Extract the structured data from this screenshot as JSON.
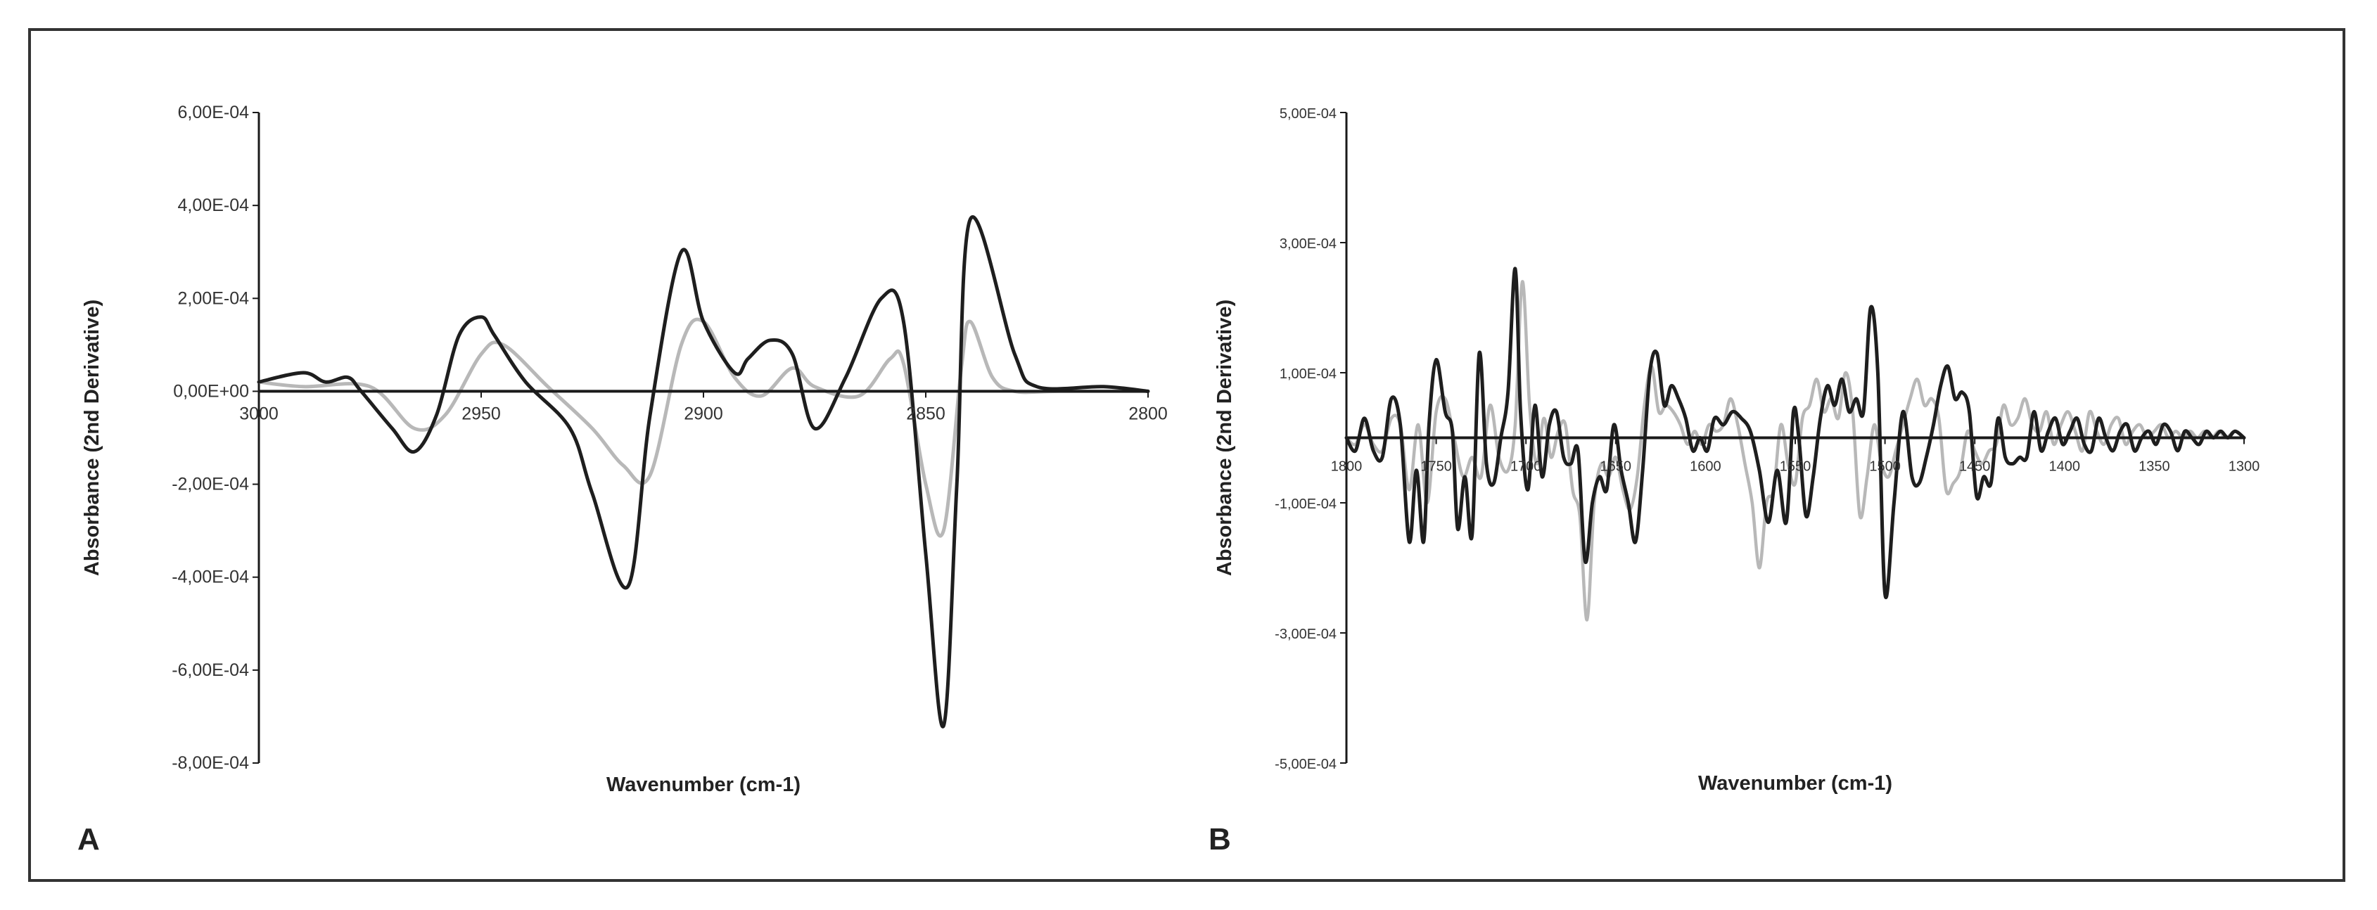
{
  "colors": {
    "dark_series": "#1e1e1e",
    "light_series": "#b8b8b8",
    "axis": "#1a1a1a",
    "ylabel": "#3a2a22"
  },
  "chart_data": [
    {
      "panel": "A",
      "type": "line",
      "xlabel": "Wavenumber (cm-1)",
      "ylabel": "Absorbance (2nd Derivative)",
      "xlim": [
        3000,
        2800
      ],
      "ylim": [
        -0.0008,
        0.0006
      ],
      "x_ticks": [
        3000,
        2950,
        2900,
        2850,
        2800
      ],
      "x_tick_labels": [
        "3000",
        "2950",
        "2900",
        "2850",
        "2800"
      ],
      "y_ticks": [
        0.0006,
        0.0004,
        0.0002,
        0,
        -0.0002,
        -0.0004,
        -0.0006,
        -0.0008
      ],
      "y_tick_labels": [
        "6,00E-04",
        "4,00E-04",
        "2,00E-04",
        "0,00E+00",
        "-2,00E-04",
        "-4,00E-04",
        "-6,00E-04",
        "-8,00E-04"
      ],
      "grid": false,
      "legend": "none",
      "series": [
        {
          "color": "#1e1e1e",
          "x": [
            3000,
            2990,
            2985,
            2980,
            2977,
            2970,
            2965,
            2960,
            2955,
            2950,
            2947,
            2940,
            2930,
            2925,
            2917,
            2912,
            2905,
            2900,
            2893,
            2890,
            2885,
            2880,
            2875,
            2868,
            2860,
            2855,
            2850,
            2846,
            2843,
            2840,
            2830,
            2825,
            2810,
            2800
          ],
          "y": [
            2e-05,
            4e-05,
            2e-05,
            3e-05,
            0,
            -8e-05,
            -0.00013,
            -5e-05,
            0.00012,
            0.00016,
            0.00012,
            2e-05,
            -8e-05,
            -0.00022,
            -0.00042,
            -5e-05,
            0.0003,
            0.00015,
            4e-05,
            7e-05,
            0.00011,
            8e-05,
            -8e-05,
            3e-05,
            0.0002,
            0.00015,
            -0.00035,
            -0.00072,
            -0.0002,
            0.00037,
            8e-05,
            1e-05,
            1e-05,
            0
          ]
        },
        {
          "color": "#b8b8b8",
          "x": [
            3000,
            2990,
            2975,
            2965,
            2958,
            2950,
            2945,
            2935,
            2925,
            2918,
            2912,
            2905,
            2900,
            2893,
            2887,
            2880,
            2875,
            2865,
            2858,
            2855,
            2850,
            2846,
            2842,
            2840,
            2835,
            2830,
            2820,
            2800
          ],
          "y": [
            2e-05,
            1e-05,
            1e-05,
            -8e-05,
            -5e-05,
            8e-05,
            0.0001,
            1e-05,
            -8e-05,
            -0.00016,
            -0.00018,
            0.0001,
            0.00015,
            3e-05,
            -1e-05,
            5e-05,
            1e-05,
            -1e-05,
            7e-05,
            6e-05,
            -0.0002,
            -0.0003,
            5e-05,
            0.00015,
            3e-05,
            0,
            0,
            0
          ]
        }
      ]
    },
    {
      "panel": "B",
      "type": "line",
      "xlabel": "Wavenumber (cm-1)",
      "ylabel": "Absorbance (2nd Derivative)",
      "xlim": [
        1800,
        1300
      ],
      "ylim": [
        -0.0005,
        0.0005
      ],
      "x_ticks": [
        1800,
        1750,
        1700,
        1650,
        1600,
        1550,
        1500,
        1450,
        1400,
        1350,
        1300
      ],
      "x_tick_labels": [
        "1800",
        "1750",
        "1700",
        "1650",
        "1600",
        "1550",
        "1500",
        "1450",
        "1400",
        "1350",
        "1300"
      ],
      "y_ticks": [
        0.0005,
        0.0003,
        0.0001,
        -0.0001,
        -0.0003,
        -0.0005
      ],
      "y_tick_labels": [
        "5,00E-04",
        "3,00E-04",
        "1,00E-04",
        "-1,00E-04",
        "-3,00E-04",
        "-5,00E-04"
      ],
      "grid": false,
      "legend": "none",
      "series": [
        {
          "color": "#1e1e1e",
          "x": [
            1800,
            1795,
            1790,
            1785,
            1780,
            1775,
            1770,
            1765,
            1761,
            1757,
            1754,
            1750,
            1745,
            1741,
            1738,
            1734,
            1730,
            1726,
            1722,
            1718,
            1714,
            1710,
            1706,
            1703,
            1699,
            1695,
            1691,
            1687,
            1683,
            1679,
            1675,
            1671,
            1667,
            1663,
            1659,
            1655,
            1651,
            1647,
            1643,
            1639,
            1635,
            1631,
            1627,
            1623,
            1619,
            1615,
            1611,
            1607,
            1603,
            1599,
            1595,
            1590,
            1585,
            1580,
            1575,
            1570,
            1565,
            1560,
            1555,
            1551,
            1548,
            1544,
            1540,
            1536,
            1532,
            1528,
            1524,
            1520,
            1516,
            1512,
            1508,
            1504,
            1500,
            1495,
            1490,
            1485,
            1481,
            1477,
            1473,
            1469,
            1465,
            1461,
            1457,
            1453,
            1449,
            1445,
            1441,
            1437,
            1433,
            1429,
            1425,
            1421,
            1417,
            1413,
            1409,
            1405,
            1401,
            1397,
            1393,
            1389,
            1385,
            1381,
            1377,
            1373,
            1369,
            1365,
            1361,
            1357,
            1353,
            1349,
            1345,
            1341,
            1337,
            1333,
            1329,
            1325,
            1321,
            1317,
            1313,
            1309,
            1305,
            1300
          ],
          "y": [
            0,
            -2e-05,
            3e-05,
            -2e-05,
            -3e-05,
            6e-05,
            2e-05,
            -0.00016,
            -5e-05,
            -0.00016,
            2e-05,
            0.00012,
            4e-05,
            1e-05,
            -0.00014,
            -6e-05,
            -0.00015,
            0.00013,
            -4e-05,
            -7e-05,
            0,
            7e-05,
            0.00026,
            4e-05,
            -8e-05,
            5e-05,
            -6e-05,
            2e-05,
            4e-05,
            -3e-05,
            -4e-05,
            -2e-05,
            -0.00019,
            -0.0001,
            -6e-05,
            -8e-05,
            2e-05,
            -5e-05,
            -0.0001,
            -0.00016,
            -5e-05,
            0.0001,
            0.00013,
            5e-05,
            8e-05,
            6e-05,
            3e-05,
            -2e-05,
            0,
            -2e-05,
            3e-05,
            2e-05,
            4e-05,
            3e-05,
            1e-05,
            -5e-05,
            -0.00013,
            -5e-05,
            -0.00013,
            4e-05,
            0,
            -0.00012,
            -6e-05,
            3e-05,
            8e-05,
            5e-05,
            9e-05,
            4e-05,
            6e-05,
            4e-05,
            0.0002,
            0.0001,
            -0.00024,
            -0.0001,
            4e-05,
            -6e-05,
            -7e-05,
            -3e-05,
            2e-05,
            8e-05,
            0.00011,
            6e-05,
            7e-05,
            4e-05,
            -9e-05,
            -6e-05,
            -7e-05,
            3e-05,
            -3e-05,
            -4e-05,
            -3e-05,
            -3e-05,
            4e-05,
            -2e-05,
            1e-05,
            3e-05,
            -1e-05,
            1e-05,
            3e-05,
            -1e-05,
            -2e-05,
            3e-05,
            0,
            -2e-05,
            1e-05,
            2e-05,
            -2e-05,
            0,
            1e-05,
            -1e-05,
            2e-05,
            1e-05,
            -2e-05,
            1e-05,
            0,
            -1e-05,
            1e-05,
            0,
            1e-05,
            0,
            1e-05,
            0
          ]
        },
        {
          "color": "#b8b8b8",
          "x": [
            1800,
            1795,
            1790,
            1785,
            1780,
            1775,
            1770,
            1765,
            1760,
            1755,
            1750,
            1745,
            1740,
            1735,
            1730,
            1725,
            1720,
            1715,
            1710,
            1706,
            1702,
            1698,
            1694,
            1690,
            1686,
            1682,
            1678,
            1674,
            1670,
            1666,
            1662,
            1658,
            1654,
            1650,
            1646,
            1642,
            1638,
            1634,
            1630,
            1626,
            1622,
            1618,
            1614,
            1610,
            1606,
            1602,
            1598,
            1594,
            1590,
            1586,
            1582,
            1578,
            1574,
            1570,
            1566,
            1562,
            1558,
            1554,
            1550,
            1546,
            1542,
            1538,
            1534,
            1530,
            1526,
            1522,
            1518,
            1514,
            1510,
            1506,
            1502,
            1498,
            1494,
            1490,
            1486,
            1482,
            1478,
            1474,
            1470,
            1466,
            1462,
            1458,
            1454,
            1450,
            1446,
            1442,
            1438,
            1434,
            1430,
            1426,
            1422,
            1418,
            1414,
            1410,
            1406,
            1402,
            1398,
            1394,
            1390,
            1386,
            1382,
            1378,
            1374,
            1370,
            1366,
            1362,
            1358,
            1354,
            1350,
            1346,
            1342,
            1338,
            1334,
            1330,
            1326,
            1322,
            1318,
            1314,
            1310,
            1305,
            1300
          ],
          "y": [
            0,
            -1e-05,
            2e-05,
            -1e-05,
            -2e-05,
            3e-05,
            2e-05,
            -8e-05,
            2e-05,
            -0.0001,
            4e-05,
            6e-05,
            0,
            -6e-05,
            -3e-05,
            -6e-05,
            5e-05,
            -3e-05,
            -5e-05,
            2e-05,
            0.00024,
            5e-05,
            -4e-05,
            3e-05,
            -3e-05,
            1e-05,
            2e-05,
            -8e-05,
            -0.00012,
            -0.00028,
            -0.0001,
            -4e-05,
            -6e-05,
            -3e-05,
            -8e-05,
            -0.00011,
            -6e-05,
            5e-05,
            0.00011,
            4e-05,
            5e-05,
            4e-05,
            2e-05,
            -1e-05,
            1e-05,
            -1e-05,
            2e-05,
            1e-05,
            2e-05,
            6e-05,
            2e-05,
            -4e-05,
            -0.0001,
            -0.0002,
            -0.0001,
            -8e-05,
            2e-05,
            -4e-05,
            -7e-05,
            3e-05,
            5e-05,
            9e-05,
            4e-05,
            6e-05,
            3e-05,
            0.0001,
            4e-05,
            -0.00012,
            -6e-05,
            2e-05,
            -4e-05,
            -6e-05,
            -2e-05,
            2e-05,
            6e-05,
            9e-05,
            5e-05,
            6e-05,
            3e-05,
            -8e-05,
            -7e-05,
            -5e-05,
            1e-05,
            -2e-05,
            -4e-05,
            -2e-05,
            -1e-05,
            5e-05,
            2e-05,
            3e-05,
            6e-05,
            2e-05,
            1e-05,
            4e-05,
            -1e-05,
            2e-05,
            4e-05,
            1e-05,
            -2e-05,
            4e-05,
            1e-05,
            -1e-05,
            2e-05,
            3e-05,
            -1e-05,
            1e-05,
            2e-05,
            0,
            1e-05,
            2e-05,
            0,
            1e-05,
            0,
            1e-05,
            0,
            1e-05,
            0,
            1e-05,
            0,
            1e-05,
            0
          ]
        }
      ]
    }
  ],
  "panels": {
    "A": {
      "letter": "A"
    },
    "B": {
      "letter": "B"
    }
  }
}
